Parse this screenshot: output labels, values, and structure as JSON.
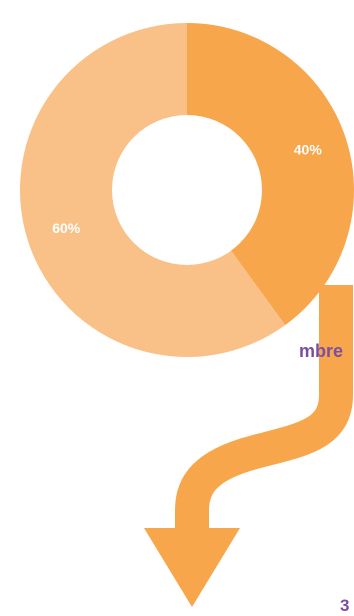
{
  "colors": {
    "primary": "#f7a64b",
    "light": "#f9c187",
    "hole": "#ffffff",
    "label_text": "#ffffff",
    "side_text": "#7b4fa0"
  },
  "chart_data": {
    "type": "pie",
    "variant": "donut",
    "title": "",
    "slices": [
      {
        "label": "40%",
        "value": 40,
        "color": "#f7a64b"
      },
      {
        "label": "60%",
        "value": 60,
        "color": "#f9c187"
      }
    ],
    "connector": "curved-arrow-down",
    "legend": "none"
  },
  "cut_text": {
    "right_label": "mbre",
    "bottom_label": "3"
  }
}
